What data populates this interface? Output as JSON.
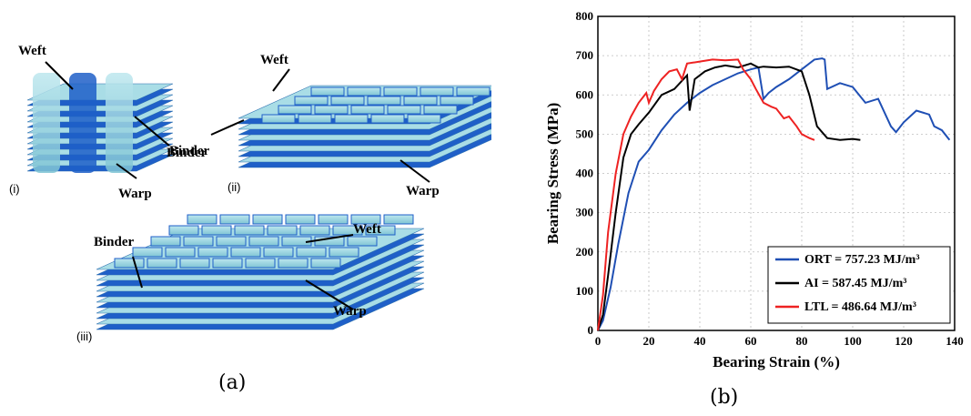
{
  "panel_a": {
    "caption": "(a)",
    "roman_i": "(i)",
    "roman_ii": "(ii)",
    "roman_iii": "(iii)",
    "weft": "Weft",
    "warp": "Warp",
    "binder": "Binder"
  },
  "panel_b": {
    "caption": "(b)"
  },
  "colors": {
    "ort": "#1f4fb4",
    "ai": "#000000",
    "ltl": "#ee2222",
    "fabric_light": "#a9dde6",
    "fabric_dark": "#1f5fc8"
  },
  "chart_data": {
    "type": "line",
    "xlabel": "Bearing Strain (%)",
    "ylabel": "Bearing Stress (MPa)",
    "xlim": [
      0,
      140
    ],
    "ylim": [
      0,
      800
    ],
    "xticks": [
      "0",
      "20",
      "40",
      "60",
      "80",
      "100",
      "120",
      "140"
    ],
    "yticks": [
      "0",
      "100",
      "200",
      "300",
      "400",
      "500",
      "600",
      "700",
      "800"
    ],
    "grid": true,
    "legend_position": "bottom-right",
    "series": [
      {
        "name": "ORT = 757.23 MJ/m³",
        "x": [
          0,
          2,
          5,
          8,
          12,
          16,
          20,
          25,
          30,
          35,
          40,
          45,
          50,
          55,
          60,
          63,
          65,
          67,
          70,
          75,
          80,
          85,
          88,
          89,
          90,
          95,
          100,
          105,
          110,
          115,
          117,
          120,
          125,
          130,
          132,
          135,
          138
        ],
        "y": [
          0,
          25,
          110,
          220,
          350,
          430,
          460,
          510,
          550,
          580,
          605,
          625,
          640,
          655,
          665,
          670,
          590,
          605,
          620,
          640,
          665,
          690,
          693,
          690,
          615,
          630,
          620,
          580,
          590,
          520,
          505,
          530,
          560,
          550,
          520,
          510,
          485
        ]
      },
      {
        "name": "AI = 587.45 MJ/m³",
        "x": [
          0,
          2,
          4,
          7,
          10,
          13,
          16,
          20,
          25,
          30,
          35,
          36,
          38,
          42,
          46,
          50,
          55,
          60,
          63,
          65,
          70,
          75,
          80,
          83,
          86,
          90,
          95,
          100,
          103
        ],
        "y": [
          0,
          40,
          140,
          300,
          440,
          500,
          525,
          555,
          600,
          615,
          650,
          560,
          640,
          660,
          670,
          675,
          670,
          680,
          670,
          672,
          670,
          672,
          660,
          600,
          520,
          490,
          485,
          488,
          485
        ]
      },
      {
        "name": "LTL = 486.64 MJ/m³",
        "x": [
          0,
          2,
          4,
          7,
          10,
          13,
          16,
          19,
          20,
          22,
          25,
          28,
          31,
          33,
          35,
          40,
          45,
          50,
          55,
          57,
          60,
          62,
          65,
          68,
          70,
          73,
          75,
          78,
          80,
          83,
          85
        ],
        "y": [
          0,
          90,
          250,
          400,
          500,
          545,
          580,
          605,
          580,
          610,
          640,
          660,
          665,
          640,
          680,
          685,
          690,
          688,
          690,
          665,
          640,
          615,
          580,
          570,
          565,
          540,
          545,
          520,
          500,
          490,
          485
        ]
      }
    ]
  }
}
